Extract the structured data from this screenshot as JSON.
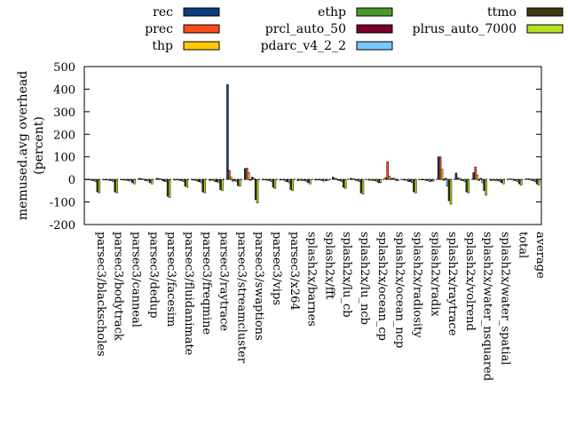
{
  "chart_data": {
    "type": "bar",
    "title": "",
    "xlabel": "",
    "ylabel": [
      "memused.avg overhead",
      "(percent)"
    ],
    "ylim": [
      -200,
      500
    ],
    "yticks": [
      -200,
      -100,
      0,
      100,
      200,
      300,
      400,
      500
    ],
    "grid": false,
    "legend_position": "top",
    "categories": [
      "parsec3/blackscholes",
      "parsec3/bodytrack",
      "parsec3/canneal",
      "parsec3/dedup",
      "parsec3/facesim",
      "parsec3/fluidanimate",
      "parsec3/freqmine",
      "parsec3/raytrace",
      "parsec3/streamcluster",
      "parsec3/swaptions",
      "parsec3/vips",
      "parsec3/x264",
      "splash2x/barnes",
      "splash2x/fft",
      "splash2x/lu_cb",
      "splash2x/lu_ncb",
      "splash2x/ocean_cp",
      "splash2x/ocean_ncp",
      "splash2x/radiosity",
      "splash2x/radix",
      "splash2x/raytrace",
      "splash2x/volrend",
      "splash2x/water_nsquared",
      "splash2x/water_spatial",
      "total",
      "average"
    ],
    "series": [
      {
        "name": "rec",
        "color": "#0b3d7e",
        "values": [
          -2,
          -3,
          -2,
          5,
          5,
          -3,
          -3,
          -5,
          420,
          48,
          -2,
          -3,
          -5,
          -3,
          10,
          5,
          -3,
          8,
          -3,
          -2,
          100,
          28,
          30,
          -5,
          2,
          2
        ]
      },
      {
        "name": "prec",
        "color": "#ff4a1a",
        "values": [
          -2,
          -2,
          -3,
          3,
          3,
          -2,
          -3,
          -3,
          40,
          50,
          -2,
          -2,
          -3,
          -2,
          5,
          3,
          -3,
          78,
          -3,
          -2,
          100,
          8,
          55,
          -3,
          2,
          3
        ]
      },
      {
        "name": "thp",
        "color": "#ffc800",
        "values": [
          -3,
          -3,
          -3,
          2,
          2,
          -3,
          -5,
          -5,
          10,
          30,
          -3,
          -3,
          -5,
          -3,
          3,
          2,
          -5,
          15,
          -5,
          -3,
          45,
          5,
          20,
          -5,
          1,
          2
        ]
      },
      {
        "name": "ethp",
        "color": "#4a9a28",
        "values": [
          -5,
          -5,
          -5,
          -5,
          -5,
          -5,
          -8,
          -10,
          -8,
          -5,
          -5,
          -8,
          -5,
          -3,
          -5,
          -5,
          -5,
          5,
          -10,
          -5,
          -5,
          -5,
          -5,
          -5,
          -5,
          -5
        ]
      },
      {
        "name": "prcl_auto_50",
        "color": "#7a0026",
        "values": [
          -5,
          -5,
          -5,
          -5,
          -8,
          -5,
          -10,
          -10,
          -5,
          10,
          -5,
          -10,
          -5,
          -5,
          -5,
          -5,
          -5,
          5,
          -10,
          -5,
          5,
          -5,
          5,
          -5,
          -5,
          -5
        ]
      },
      {
        "name": "pdarc_v4_2_2",
        "color": "#78c8ff",
        "values": [
          -10,
          -10,
          -8,
          -8,
          -10,
          -10,
          -15,
          -15,
          -10,
          5,
          -10,
          -15,
          -10,
          -8,
          -10,
          -10,
          -10,
          5,
          -15,
          -10,
          -30,
          -10,
          -15,
          -10,
          -10,
          -10
        ]
      },
      {
        "name": "ttmo",
        "color": "#3a3a10",
        "values": [
          -55,
          -55,
          -15,
          -15,
          -75,
          -30,
          -55,
          -45,
          -28,
          -90,
          -35,
          -45,
          -15,
          -5,
          -35,
          -60,
          -15,
          -5,
          -55,
          -8,
          -95,
          -55,
          -50,
          -15,
          -20,
          -20
        ]
      },
      {
        "name": "plrus_auto_7000",
        "color": "#b8e020",
        "values": [
          -60,
          -60,
          -20,
          -20,
          -80,
          -35,
          -60,
          -50,
          -30,
          -105,
          -40,
          -50,
          -20,
          -5,
          -40,
          -65,
          -15,
          -5,
          -60,
          -8,
          -110,
          -60,
          -70,
          -20,
          -25,
          -25
        ]
      }
    ]
  }
}
